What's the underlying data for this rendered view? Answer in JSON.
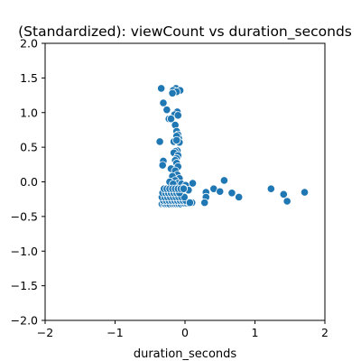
{
  "chart_data": {
    "type": "scatter",
    "title": "(Standardized): viewCount vs duration_seconds",
    "xlabel": "duration_seconds",
    "ylabel": "",
    "xlim": [
      -2,
      2
    ],
    "ylim": [
      -2,
      2
    ],
    "x_ticks": [
      -2,
      -1,
      0,
      1,
      2
    ],
    "x_tick_labels": [
      "−2",
      "−1",
      "0",
      "1",
      "2"
    ],
    "y_ticks": [
      -2.0,
      -1.5,
      -1.0,
      -0.5,
      0.0,
      0.5,
      1.0,
      1.5,
      2.0
    ],
    "y_tick_labels": [
      "−2.0",
      "−1.5",
      "−1.0",
      "−0.5",
      "0.0",
      "0.5",
      "1.0",
      "1.5",
      "2.0"
    ],
    "grid": false,
    "colors": {
      "marker": "#1f77b4",
      "marker_edge": "#ffffff"
    },
    "x": [
      -0.34,
      -0.13,
      -0.17,
      -0.07,
      -0.12,
      -0.18,
      -0.31,
      -0.26,
      -0.23,
      -0.11,
      -0.15,
      -0.2,
      -0.36,
      -0.1,
      -0.14,
      -0.12,
      -0.1,
      -0.09,
      -0.12,
      -0.14,
      -0.16,
      -0.08,
      -0.11,
      -0.14,
      -0.16,
      -0.1,
      -0.12,
      -0.31,
      -0.14,
      -0.12,
      -0.32,
      -0.1,
      -0.2,
      -0.14,
      -0.11,
      -0.18,
      -0.08,
      -0.14,
      -0.22,
      -0.1,
      -0.17,
      -0.05,
      0.01,
      0.11,
      0.3,
      0.41,
      0.5,
      0.56,
      0.67,
      0.77,
      1.23,
      1.41,
      1.46,
      1.71,
      0.3,
      0.28,
      0.05,
      -0.02,
      0.1,
      -0.33,
      -0.3,
      -0.28,
      -0.25,
      -0.22,
      -0.18,
      -0.15,
      -0.12,
      -0.09,
      -0.06,
      -0.03,
      0.0,
      0.03,
      0.06,
      -0.31,
      -0.27,
      -0.23,
      -0.19,
      -0.15,
      -0.11,
      -0.07,
      -0.03,
      0.01,
      -0.33,
      -0.29,
      -0.25,
      -0.21,
      -0.17,
      -0.13,
      -0.09,
      -0.05,
      -0.01,
      -0.32,
      -0.28,
      -0.24,
      -0.2,
      -0.16,
      -0.12,
      -0.08,
      -0.3,
      -0.26,
      -0.22,
      -0.18,
      -0.14,
      -0.1,
      -0.06,
      -0.02,
      0.07,
      -0.12
    ],
    "y": [
      1.35,
      1.35,
      1.32,
      1.32,
      1.3,
      1.28,
      1.14,
      1.04,
      0.91,
      1.01,
      0.97,
      0.91,
      0.58,
      0.96,
      0.82,
      0.73,
      0.68,
      0.63,
      0.66,
      0.59,
      0.58,
      0.57,
      0.45,
      0.44,
      0.42,
      0.38,
      0.34,
      0.3,
      0.31,
      0.27,
      0.24,
      0.22,
      0.19,
      0.16,
      0.1,
      0.08,
      0.05,
      0.02,
      0.0,
      -0.02,
      -0.03,
      -0.03,
      -0.05,
      -0.02,
      -0.15,
      -0.1,
      -0.14,
      0.02,
      -0.16,
      -0.22,
      -0.1,
      -0.18,
      -0.28,
      -0.15,
      -0.22,
      -0.3,
      -0.12,
      -0.09,
      -0.3,
      -0.32,
      -0.32,
      -0.32,
      -0.32,
      -0.32,
      -0.32,
      -0.32,
      -0.32,
      -0.32,
      -0.32,
      -0.31,
      -0.31,
      -0.31,
      -0.31,
      -0.27,
      -0.27,
      -0.27,
      -0.27,
      -0.27,
      -0.27,
      -0.27,
      -0.27,
      -0.27,
      -0.22,
      -0.22,
      -0.22,
      -0.22,
      -0.22,
      -0.22,
      -0.22,
      -0.22,
      -0.22,
      -0.16,
      -0.16,
      -0.16,
      -0.16,
      -0.16,
      -0.16,
      -0.16,
      -0.1,
      -0.1,
      -0.1,
      -0.1,
      -0.1,
      -0.1,
      -0.1,
      -0.1,
      -0.3,
      0.6
    ]
  }
}
